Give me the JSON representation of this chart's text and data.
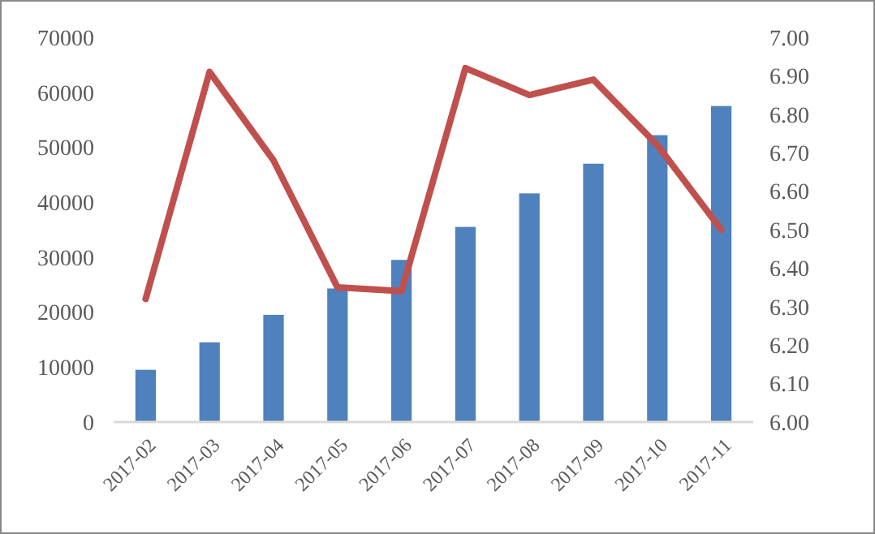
{
  "chart_data": {
    "type": "bar",
    "categories": [
      "2017-02",
      "2017-03",
      "2017-04",
      "2017-05",
      "2017-06",
      "2017-07",
      "2017-08",
      "2017-09",
      "2017-10",
      "2017-11"
    ],
    "series": [
      {
        "color": "#4f81bd",
        "values": [
          9500,
          14500,
          19500,
          24300,
          29500,
          35500,
          41600,
          47000,
          52200,
          57500
        ]
      },
      {
        "type": "line",
        "axis": "y2",
        "color": "#c0504d",
        "values": [
          6.32,
          6.91,
          6.68,
          6.35,
          6.34,
          6.92,
          6.85,
          6.89,
          6.72,
          6.5
        ]
      }
    ],
    "ylim": [
      0,
      70000
    ],
    "yticks": [
      0,
      10000,
      20000,
      30000,
      40000,
      50000,
      60000,
      70000
    ],
    "y2lim": [
      6,
      7
    ],
    "y2ticks": [
      {
        "value": 6,
        "label": "6.00"
      },
      {
        "value": 6.1,
        "label": "6.10"
      },
      {
        "value": 6.2,
        "label": "6.20"
      },
      {
        "value": 6.3,
        "label": "6.30"
      },
      {
        "value": 6.4,
        "label": "6.40"
      },
      {
        "value": 6.5,
        "label": "6.50"
      },
      {
        "value": 6.6,
        "label": "6.60"
      },
      {
        "value": 6.7,
        "label": "6.70"
      },
      {
        "value": 6.8,
        "label": "6.80"
      },
      {
        "value": 6.9,
        "label": "6.90"
      },
      {
        "value": 7,
        "label": "7.00"
      }
    ],
    "grid": false,
    "marker": "none",
    "line_style": "solid"
  }
}
